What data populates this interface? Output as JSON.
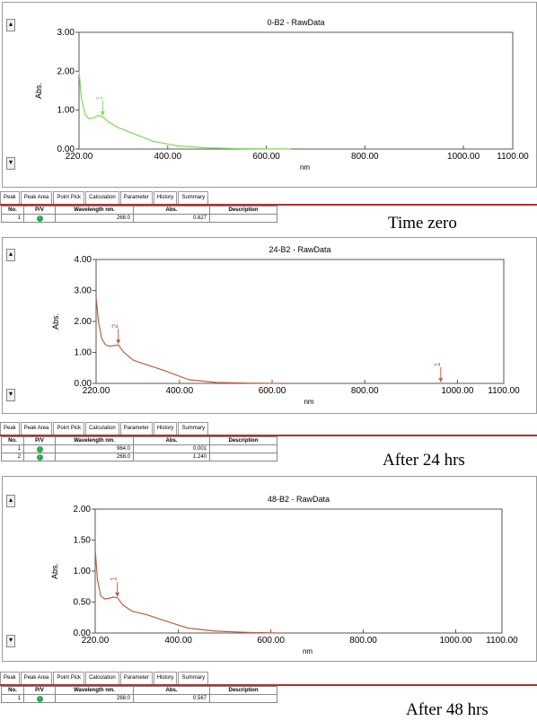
{
  "tabs": [
    "Peak",
    "Peak Area",
    "Point Pick",
    "Calculation",
    "Parameter",
    "History",
    "Summary"
  ],
  "table_headers": [
    "No.",
    "P/V",
    "Wavelength nm.",
    "Abs.",
    "Description"
  ],
  "pv_icon": "peak-icon",
  "chart_data": [
    {
      "type": "line",
      "title": "0-B2 - RawData",
      "xlabel": "nm",
      "ylabel": "Abs.",
      "xlim": [
        220,
        1100
      ],
      "ylim": [
        0,
        3
      ],
      "x_ticks": [
        "220.00",
        "400.00",
        "600.00",
        "800.00",
        "1000.00",
        "1100.00"
      ],
      "y_ticks": [
        "0.00",
        "1.00",
        "2.00",
        "3.00"
      ],
      "line_color": "#7ed957",
      "series": [
        {
          "x": [
            220,
            225,
            232,
            240,
            250,
            258,
            268,
            280,
            300,
            330,
            370,
            420,
            480,
            550,
            650
          ],
          "y": [
            2.0,
            1.3,
            0.9,
            0.78,
            0.8,
            0.86,
            0.83,
            0.7,
            0.55,
            0.4,
            0.2,
            0.08,
            0.03,
            0.01,
            0.0
          ]
        }
      ],
      "peaks": [
        {
          "label": "1",
          "x": 268,
          "y": 0.827
        }
      ],
      "caption": "Time zero",
      "table_rows": [
        [
          "1",
          "",
          "268.0",
          "0.827",
          ""
        ]
      ]
    },
    {
      "type": "line",
      "title": "24-B2 - RawData",
      "xlabel": "nm",
      "ylabel": "Abs.",
      "xlim": [
        220,
        1100
      ],
      "ylim": [
        0,
        4
      ],
      "x_ticks": [
        "220.00",
        "400.00",
        "600.00",
        "800.00",
        "1000.00",
        "1100.00"
      ],
      "y_ticks": [
        "0.00",
        "1.00",
        "2.00",
        "3.00",
        "4.00"
      ],
      "line_color": "#c06040",
      "series": [
        {
          "x": [
            220,
            225,
            232,
            240,
            250,
            258,
            268,
            280,
            300,
            330,
            370,
            420,
            480,
            550,
            620
          ],
          "y": [
            2.8,
            2.0,
            1.45,
            1.25,
            1.2,
            1.22,
            1.24,
            1.0,
            0.75,
            0.6,
            0.4,
            0.12,
            0.03,
            0.01,
            0.0
          ]
        }
      ],
      "peaks": [
        {
          "label": "1",
          "x": 964,
          "y": 0.001
        },
        {
          "label": "2",
          "x": 268,
          "y": 1.24
        }
      ],
      "caption": "After 24 hrs",
      "table_rows": [
        [
          "1",
          "",
          "964.0",
          "0.001",
          ""
        ],
        [
          "2",
          "",
          "268.0",
          "1.240",
          ""
        ]
      ]
    },
    {
      "type": "line",
      "title": "48-B2 - RawData",
      "xlabel": "nm",
      "ylabel": "Abs.",
      "xlim": [
        220,
        1100
      ],
      "ylim": [
        0,
        2
      ],
      "x_ticks": [
        "220.00",
        "400.00",
        "600.00",
        "800.00",
        "1000.00",
        "1100.00"
      ],
      "y_ticks": [
        "0.00",
        "0.50",
        "1.00",
        "1.50",
        "2.00"
      ],
      "line_color": "#c06040",
      "series": [
        {
          "x": [
            220,
            225,
            232,
            240,
            250,
            258,
            268,
            280,
            300,
            330,
            370,
            420,
            480,
            550,
            620
          ],
          "y": [
            1.35,
            0.85,
            0.6,
            0.55,
            0.56,
            0.58,
            0.57,
            0.45,
            0.35,
            0.3,
            0.2,
            0.08,
            0.03,
            0.01,
            0.0
          ]
        }
      ],
      "peaks": [
        {
          "label": "1",
          "x": 268,
          "y": 0.567
        }
      ],
      "caption": "After 48 hrs",
      "table_rows": [
        [
          "1",
          "",
          "268.0",
          "0.567",
          ""
        ]
      ]
    }
  ]
}
